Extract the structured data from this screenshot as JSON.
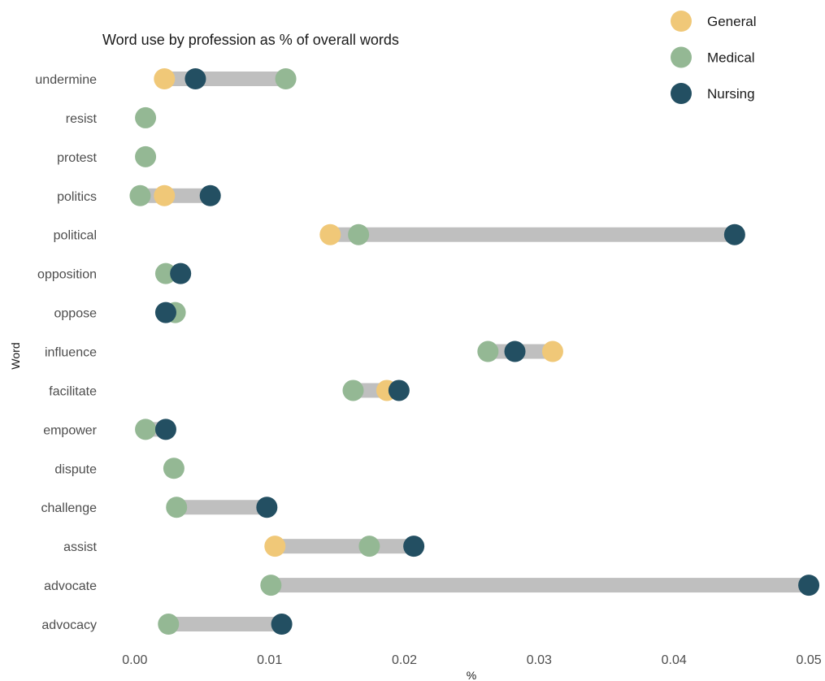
{
  "chart_data": {
    "type": "dumbbell",
    "title": "Word use by profession as % of overall words",
    "xlabel": "%",
    "ylabel": "Word",
    "xlim": [
      -0.0024,
      0.0509
    ],
    "x_ticks": [
      0.0,
      0.01,
      0.02,
      0.03,
      0.04,
      0.05
    ],
    "x_tick_labels": [
      "0.00",
      "0.01",
      "0.02",
      "0.03",
      "0.04",
      "0.05"
    ],
    "grid": false,
    "legend_position": "top-right",
    "categories": [
      "undermine",
      "resist",
      "protest",
      "politics",
      "political",
      "opposition",
      "oppose",
      "influence",
      "facilitate",
      "empower",
      "dispute",
      "challenge",
      "assist",
      "advocate",
      "advocacy"
    ],
    "series": [
      {
        "name": "General",
        "color": "#F0C878",
        "values": [
          0.0022,
          null,
          null,
          0.0022,
          0.0145,
          null,
          null,
          0.031,
          0.0187,
          null,
          null,
          null,
          0.0104,
          null,
          null
        ]
      },
      {
        "name": "Medical",
        "color": "#94B894",
        "values": [
          0.0112,
          0.0008,
          0.0008,
          0.0004,
          0.0166,
          0.0023,
          0.003,
          0.0262,
          0.0162,
          0.0008,
          0.0029,
          0.0031,
          0.0174,
          0.0101,
          0.0025
        ]
      },
      {
        "name": "Nursing",
        "color": "#234F62",
        "values": [
          0.0045,
          null,
          null,
          0.0056,
          0.0445,
          0.0034,
          0.0023,
          0.0282,
          0.0196,
          0.0023,
          null,
          0.0098,
          0.0207,
          0.05,
          0.0109
        ]
      }
    ],
    "bar_color": "#BFBFBF"
  }
}
